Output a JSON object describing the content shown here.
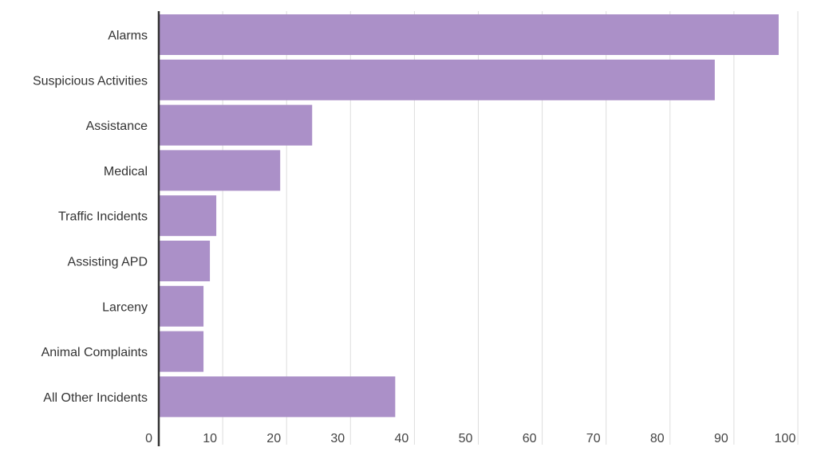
{
  "chart_data": {
    "type": "bar",
    "orientation": "horizontal",
    "categories": [
      "Alarms",
      "Suspicious Activities",
      "Assistance",
      "Medical",
      "Traffic Incidents",
      "Assisting APD",
      "Larceny",
      "Animal Complaints",
      "All Other Incidents"
    ],
    "values": [
      97,
      87,
      24,
      19,
      9,
      8,
      7,
      7,
      37
    ],
    "xlim": [
      0,
      100
    ],
    "xticks": [
      0,
      10,
      20,
      30,
      40,
      50,
      60,
      70,
      80,
      90,
      100
    ],
    "grid": "vertical",
    "legend": "none",
    "title": "",
    "xlabel": "",
    "ylabel": "",
    "colors": {
      "bar": "#ab90c8",
      "grid": "#dddddd",
      "axis": "#333333"
    }
  }
}
